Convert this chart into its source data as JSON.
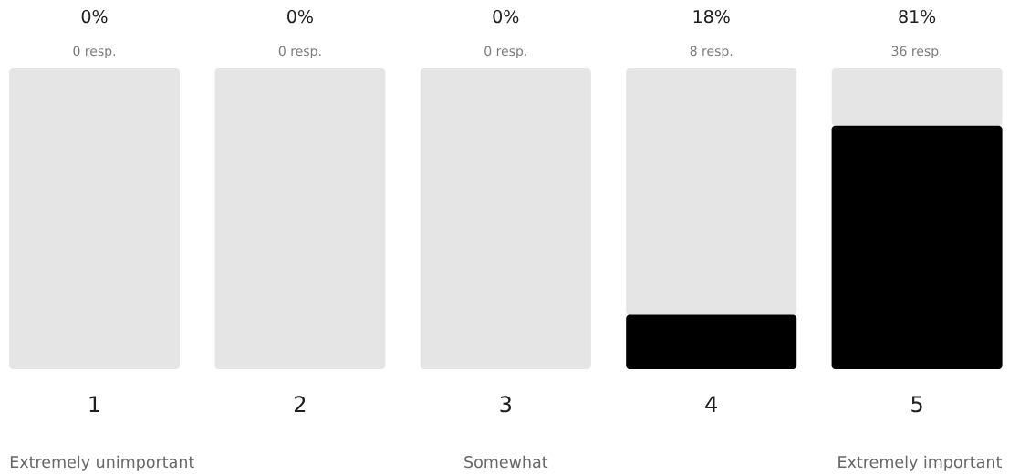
{
  "chart_data": {
    "type": "bar",
    "stacked": true,
    "categories": [
      "1",
      "2",
      "3",
      "4",
      "5"
    ],
    "series": [
      {
        "color": "#000000",
        "values": [
          0,
          0,
          0,
          18,
          81
        ],
        "value_labels": [
          "0%",
          "0%",
          "0%",
          "18%",
          "81%"
        ]
      },
      {
        "color": "#e5e5e5",
        "values": [
          100,
          100,
          100,
          82,
          19
        ]
      }
    ],
    "ylim": [
      0,
      100
    ],
    "tick_labels": "x",
    "annotations": [
      {
        "text": "0 resp.",
        "x": "1",
        "y": 100
      },
      {
        "text": "0 resp.",
        "x": "2",
        "y": 100
      },
      {
        "text": "0 resp.",
        "x": "3",
        "y": 100
      },
      {
        "text": "8 resp.",
        "x": "4",
        "y": 100
      },
      {
        "text": "36 resp.",
        "x": "5",
        "y": 100
      },
      "Extremely unimportant",
      "Somewhat",
      "Extremely important"
    ]
  }
}
